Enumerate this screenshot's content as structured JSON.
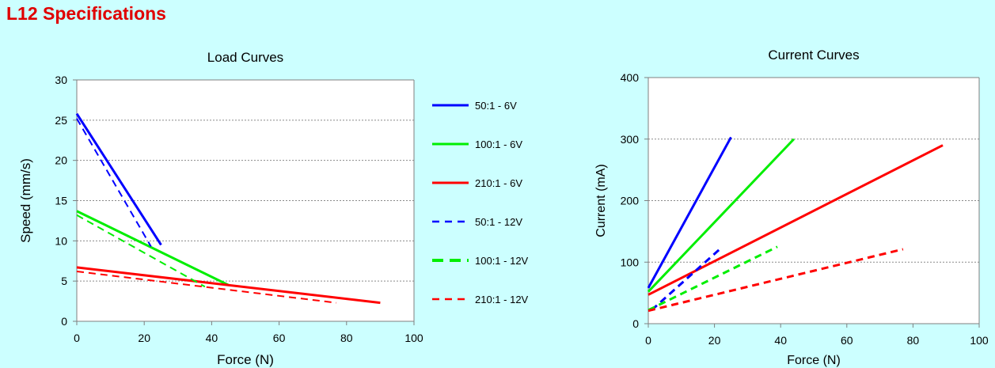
{
  "page": {
    "title": "L12 Specifications"
  },
  "chart_data": [
    {
      "type": "line",
      "title": "Load Curves",
      "xlabel": "Force (N)",
      "ylabel": "Speed (mm/s)",
      "xlim": [
        0,
        100
      ],
      "ylim": [
        0,
        30
      ],
      "xticks": [
        0,
        20,
        40,
        60,
        80,
        100
      ],
      "yticks": [
        0,
        5,
        10,
        15,
        20,
        25,
        30
      ],
      "grid": true,
      "legend_position": "right",
      "series": [
        {
          "name": "50:1  - 6V",
          "color": "#0000ff",
          "dash": "solid",
          "points": [
            [
              0,
              25.8
            ],
            [
              25,
              9.5
            ]
          ]
        },
        {
          "name": "100:1 - 6V",
          "color": "#00ee00",
          "dash": "solid",
          "points": [
            [
              0,
              13.7
            ],
            [
              45,
              4.5
            ]
          ]
        },
        {
          "name": "210:1 - 6V",
          "color": "#ff0000",
          "dash": "solid",
          "points": [
            [
              0,
              6.7
            ],
            [
              90,
              2.3
            ]
          ]
        },
        {
          "name": "50:1  - 12V",
          "color": "#0000ff",
          "dash": "dashed",
          "points": [
            [
              0,
              25.2
            ],
            [
              22,
              9.3
            ]
          ]
        },
        {
          "name": "100:1 - 12V",
          "color": "#00ee00",
          "dash": "dashed",
          "points": [
            [
              0,
              13.2
            ],
            [
              38,
              4.3
            ]
          ]
        },
        {
          "name": "210:1 - 12V",
          "color": "#ff0000",
          "dash": "dashed",
          "points": [
            [
              0,
              6.2
            ],
            [
              77,
              2.3
            ]
          ]
        }
      ]
    },
    {
      "type": "line",
      "title": "Current Curves",
      "xlabel": "Force (N)",
      "ylabel": "Current (mA)",
      "xlim": [
        0,
        100
      ],
      "ylim": [
        0,
        400
      ],
      "xticks": [
        0,
        20,
        40,
        60,
        80,
        100
      ],
      "yticks": [
        0,
        100,
        200,
        300,
        400
      ],
      "grid": true,
      "series": [
        {
          "color": "#0000ff",
          "dash": "solid",
          "points": [
            [
              0,
              58
            ],
            [
              25,
              303
            ]
          ]
        },
        {
          "color": "#00ee00",
          "dash": "solid",
          "points": [
            [
              0,
              52
            ],
            [
              44,
              300
            ]
          ]
        },
        {
          "color": "#ff0000",
          "dash": "solid",
          "points": [
            [
              0,
              47
            ],
            [
              89,
              290
            ]
          ]
        },
        {
          "color": "#0000ff",
          "dash": "dashed",
          "points": [
            [
              1,
              22
            ],
            [
              22,
              123
            ]
          ]
        },
        {
          "color": "#00ee00",
          "dash": "dashed",
          "points": [
            [
              0,
              22
            ],
            [
              39,
              125
            ]
          ]
        },
        {
          "color": "#ff0000",
          "dash": "dashed",
          "points": [
            [
              0,
              21
            ],
            [
              77,
              121
            ]
          ]
        }
      ]
    }
  ]
}
